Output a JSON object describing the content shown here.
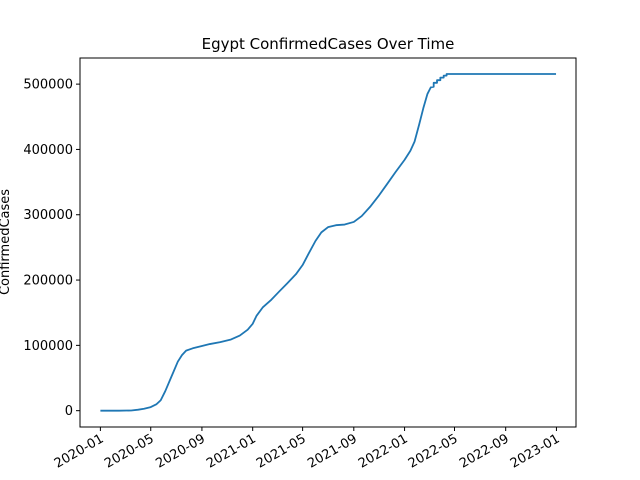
{
  "chart_data": {
    "type": "line",
    "title": "Egypt  ConfirmedCases Over Time",
    "xlabel": "",
    "ylabel": "ConfirmedCases",
    "xlim": [
      "2019-11-13",
      "2023-02-17"
    ],
    "ylim": [
      -25000,
      540000
    ],
    "grid": false,
    "x_ticks": [
      "2020-01",
      "2020-05",
      "2020-09",
      "2021-01",
      "2021-05",
      "2021-09",
      "2022-01",
      "2022-05",
      "2022-09",
      "2023-01"
    ],
    "y_ticks": [
      0,
      100000,
      200000,
      300000,
      400000,
      500000
    ],
    "y_tick_labels": [
      "0",
      "100000",
      "200000",
      "300000",
      "400000",
      "500000"
    ],
    "series": [
      {
        "color": "#1f77b4",
        "points": [
          [
            "2020-01-01",
            0
          ],
          [
            "2020-02-15",
            0
          ],
          [
            "2020-03-15",
            300
          ],
          [
            "2020-04-01",
            1500
          ],
          [
            "2020-04-15",
            3000
          ],
          [
            "2020-05-01",
            5500
          ],
          [
            "2020-05-15",
            10000
          ],
          [
            "2020-05-25",
            16000
          ],
          [
            "2020-06-05",
            30000
          ],
          [
            "2020-06-15",
            45000
          ],
          [
            "2020-06-25",
            60000
          ],
          [
            "2020-07-05",
            75000
          ],
          [
            "2020-07-15",
            85000
          ],
          [
            "2020-07-25",
            92000
          ],
          [
            "2020-08-10",
            95500
          ],
          [
            "2020-09-01",
            99000
          ],
          [
            "2020-09-20",
            102000
          ],
          [
            "2020-10-15",
            105000
          ],
          [
            "2020-11-10",
            109000
          ],
          [
            "2020-12-01",
            115000
          ],
          [
            "2020-12-20",
            124000
          ],
          [
            "2021-01-01",
            133000
          ],
          [
            "2021-01-10",
            145000
          ],
          [
            "2021-01-25",
            158000
          ],
          [
            "2021-02-15",
            170000
          ],
          [
            "2021-03-05",
            182000
          ],
          [
            "2021-03-25",
            195000
          ],
          [
            "2021-04-15",
            209000
          ],
          [
            "2021-05-01",
            223000
          ],
          [
            "2021-05-15",
            240000
          ],
          [
            "2021-06-01",
            260000
          ],
          [
            "2021-06-15",
            273000
          ],
          [
            "2021-07-01",
            281000
          ],
          [
            "2021-07-20",
            284000
          ],
          [
            "2021-08-10",
            285000
          ],
          [
            "2021-09-01",
            289000
          ],
          [
            "2021-09-20",
            298000
          ],
          [
            "2021-10-10",
            312000
          ],
          [
            "2021-11-01",
            330000
          ],
          [
            "2021-11-20",
            347000
          ],
          [
            "2021-12-10",
            365000
          ],
          [
            "2022-01-01",
            384000
          ],
          [
            "2022-01-15",
            398000
          ],
          [
            "2022-01-25",
            412000
          ],
          [
            "2022-02-05",
            438000
          ],
          [
            "2022-02-15",
            463000
          ],
          [
            "2022-02-25",
            485000
          ],
          [
            "2022-03-05",
            495000
          ],
          [
            "2022-03-12",
            496000
          ],
          [
            "2022-03-12",
            502000
          ],
          [
            "2022-03-20",
            502000
          ],
          [
            "2022-03-20",
            506000
          ],
          [
            "2022-03-28",
            506000
          ],
          [
            "2022-03-28",
            510000
          ],
          [
            "2022-04-05",
            510000
          ],
          [
            "2022-04-05",
            513000
          ],
          [
            "2022-04-12",
            513000
          ],
          [
            "2022-04-12",
            515500
          ],
          [
            "2022-12-31",
            515500
          ]
        ]
      }
    ]
  }
}
